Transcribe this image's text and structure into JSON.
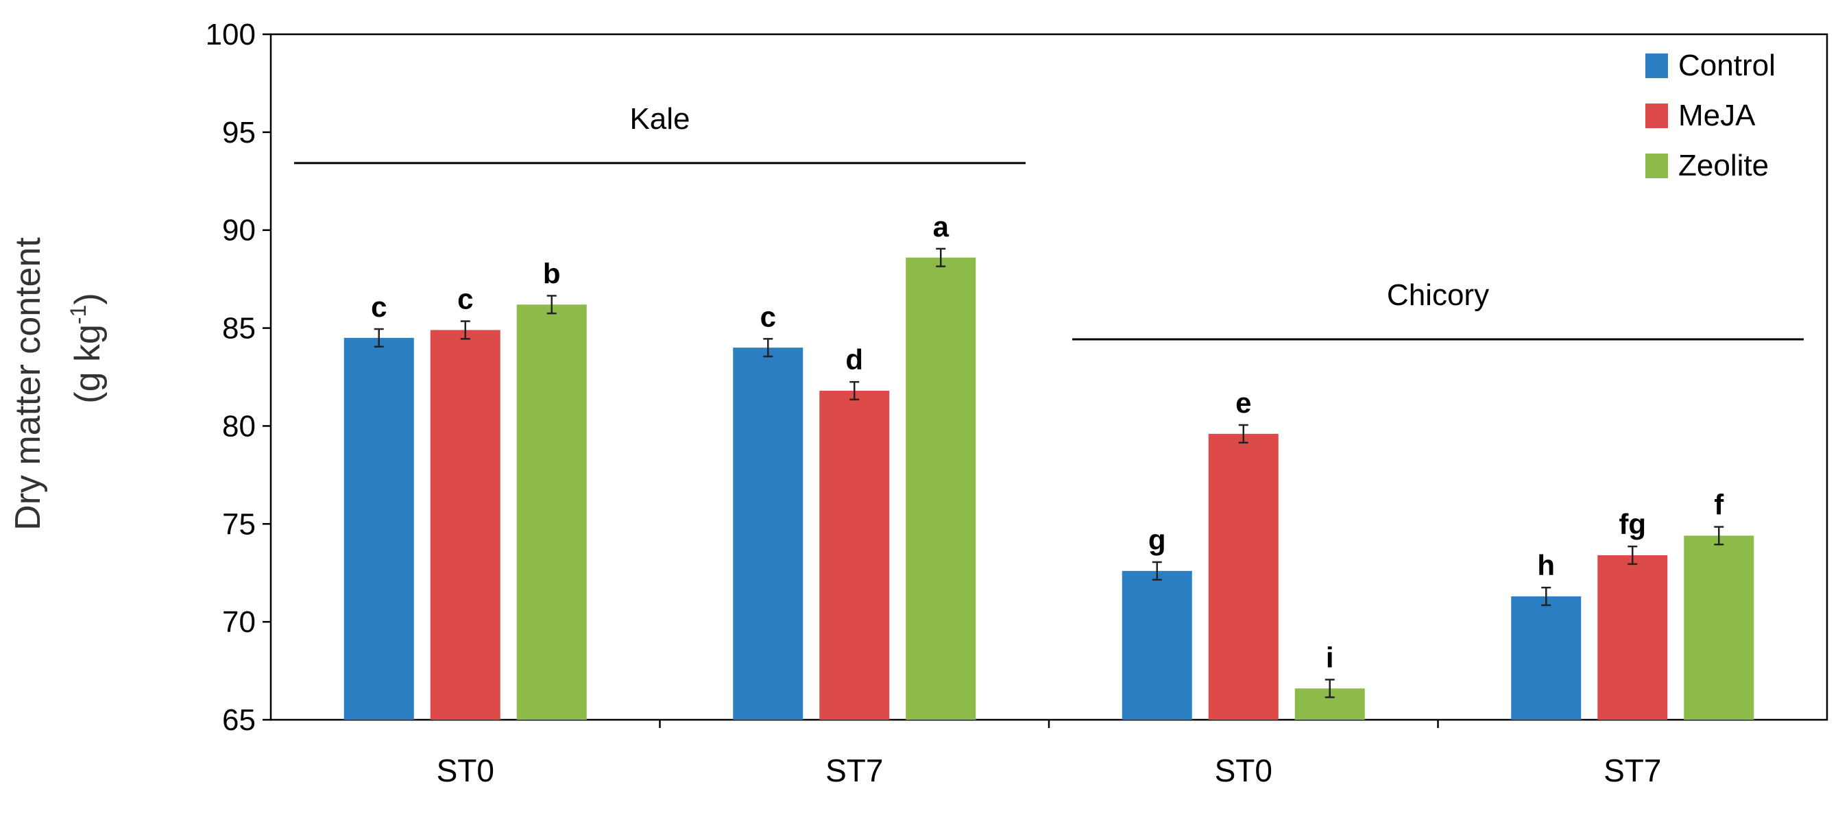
{
  "chart_data": {
    "type": "bar",
    "title": "",
    "xlabel": "",
    "ylabel_line1": "Dry matter content",
    "ylabel_unit_base": "(g kg",
    "ylabel_unit_sup": "-1",
    "ylabel_unit_close": ")",
    "ylim": [
      65,
      100
    ],
    "yticks": [
      65,
      70,
      75,
      80,
      85,
      90,
      95,
      100
    ],
    "ytick_labels": [
      "65",
      "70",
      "75",
      "80",
      "85",
      "90",
      "95",
      "100"
    ],
    "grid": false,
    "legend_position": "top-right",
    "categories": [
      "ST0",
      "ST7",
      "ST0",
      "ST7"
    ],
    "groups": [
      {
        "label": "Kale",
        "categories": [
          0,
          1
        ]
      },
      {
        "label": "Chicory",
        "categories": [
          2,
          3
        ]
      }
    ],
    "series": [
      {
        "name": "Control",
        "color": "#2a7ec1",
        "values": [
          84.5,
          84.0,
          72.6,
          71.3
        ],
        "errors": [
          0.45,
          0.45,
          0.45,
          0.45
        ],
        "letters": [
          "c",
          "c",
          "g",
          "h"
        ]
      },
      {
        "name": "MeJA",
        "color": "#dc4a4a",
        "values": [
          84.9,
          81.8,
          79.6,
          73.4
        ],
        "errors": [
          0.45,
          0.45,
          0.45,
          0.45
        ],
        "letters": [
          "c",
          "d",
          "e",
          "fg"
        ]
      },
      {
        "name": "Zeolite",
        "color": "#8dbb4a",
        "values": [
          86.2,
          88.6,
          66.6,
          74.4
        ],
        "errors": [
          0.45,
          0.45,
          0.45,
          0.45
        ],
        "letters": [
          "b",
          "a",
          "i",
          "f"
        ]
      }
    ]
  }
}
